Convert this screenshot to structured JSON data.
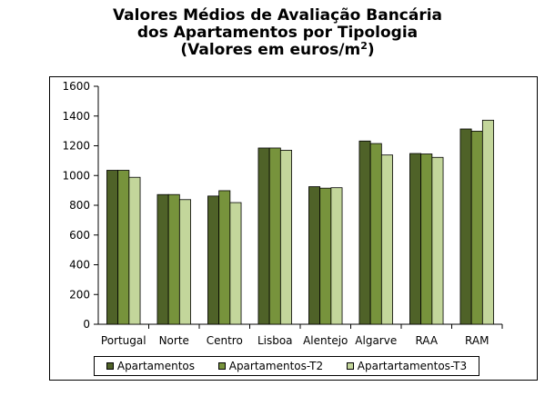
{
  "chart_data": {
    "type": "bar",
    "title_lines": [
      "Valores Médios de Avaliação Bancária",
      "dos Apartamentos por Tipologia"
    ],
    "title_unit_prefix": "(Valores em euros/m",
    "title_unit_sup": "2",
    "title_unit_suffix": ")",
    "categories": [
      "Portugal",
      "Norte",
      "Centro",
      "Lisboa",
      "Alentejo",
      "Algarve",
      "RAA",
      "RAM"
    ],
    "series": [
      {
        "name": "Apartamentos",
        "color": "#4f6228",
        "values": [
          1035,
          872,
          862,
          1185,
          925,
          1232,
          1148,
          1313
        ]
      },
      {
        "name": "Apartamentos-T2",
        "color": "#77933c",
        "values": [
          1035,
          872,
          898,
          1185,
          915,
          1215,
          1145,
          1298
        ]
      },
      {
        "name": "Apartartamentos-T3",
        "color": "#c3d69b",
        "values": [
          988,
          838,
          818,
          1170,
          918,
          1138,
          1122,
          1372
        ]
      }
    ],
    "ylim": [
      0,
      1600
    ],
    "yticks": [
      0,
      200,
      400,
      600,
      800,
      1000,
      1200,
      1400,
      1600
    ],
    "grid": false,
    "legend_position": "bottom"
  }
}
